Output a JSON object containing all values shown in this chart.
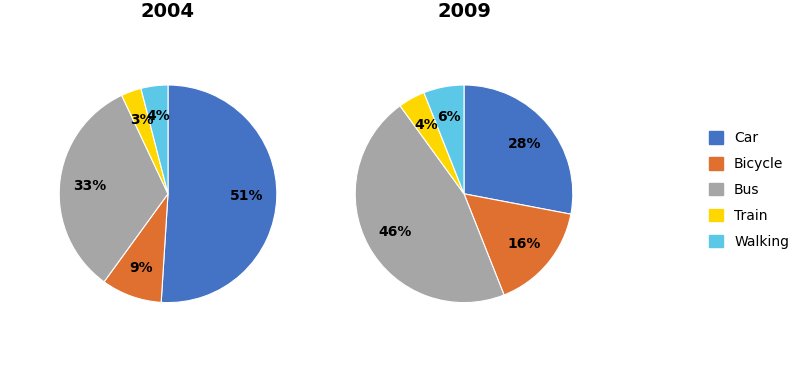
{
  "title_2004": "2004",
  "title_2009": "2009",
  "labels": [
    "Car",
    "Bicycle",
    "Bus",
    "Train",
    "Walking"
  ],
  "values_2004": [
    51,
    9,
    33,
    3,
    4
  ],
  "values_2009": [
    28,
    16,
    46,
    4,
    6
  ],
  "colors": [
    "#4472C4",
    "#E07030",
    "#A6A6A6",
    "#FFD700",
    "#5BC8E8"
  ],
  "title_fontsize": 14,
  "label_fontsize": 10,
  "legend_fontsize": 10,
  "background_color": "#ffffff"
}
